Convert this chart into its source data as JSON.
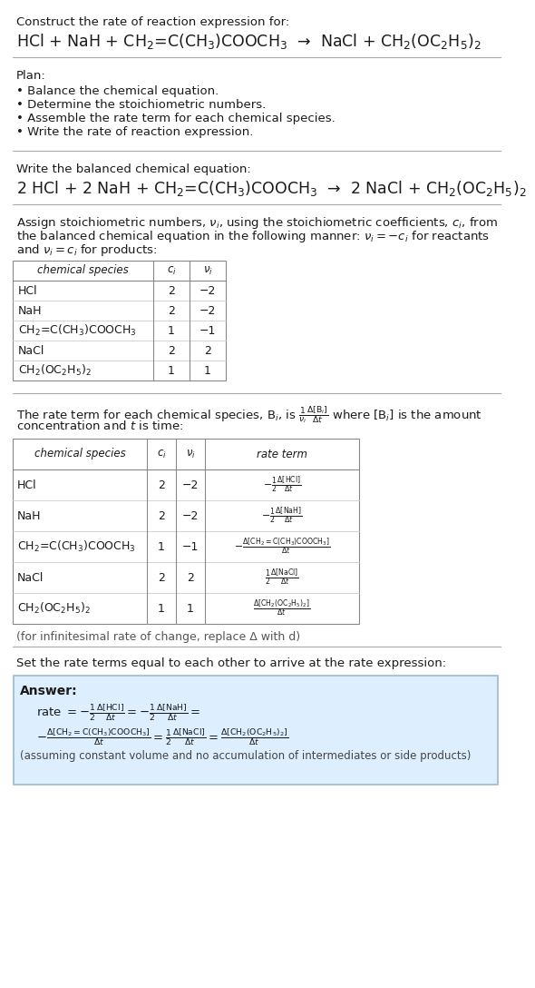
{
  "bg_color": "#ffffff",
  "text_color": "#1a1a1a",
  "answer_bg": "#ddeeff",
  "title_line1": "Construct the rate of reaction expression for:",
  "title_line2": "HCl + NaH + CH$_2$=C(CH$_3$)COOCH$_3$  →  NaCl + CH$_2$(OC$_2$H$_5$)$_2$",
  "plan_header": "Plan:",
  "plan_items": [
    "• Balance the chemical equation.",
    "• Determine the stoichiometric numbers.",
    "• Assemble the rate term for each chemical species.",
    "• Write the rate of reaction expression."
  ],
  "balanced_header": "Write the balanced chemical equation:",
  "balanced_eq": "2 HCl + 2 NaH + CH$_2$=C(CH$_3$)COOCH$_3$  →  2 NaCl + CH$_2$(OC$_2$H$_5$)$_2$",
  "stoich_text_lines": [
    "Assign stoichiometric numbers, $\\nu_i$, using the stoichiometric coefficients, $c_i$, from",
    "the balanced chemical equation in the following manner: $\\nu_i = -c_i$ for reactants",
    "and $\\nu_i = c_i$ for products:"
  ],
  "table1_headers": [
    "chemical species",
    "$c_i$",
    "$\\nu_i$"
  ],
  "table1_rows": [
    [
      "HCl",
      "2",
      "−2"
    ],
    [
      "NaH",
      "2",
      "−2"
    ],
    [
      "CH$_2$=C(CH$_3$)COOCH$_3$",
      "1",
      "−1"
    ],
    [
      "NaCl",
      "2",
      "2"
    ],
    [
      "CH$_2$(OC$_2$H$_5$)$_2$",
      "1",
      "1"
    ]
  ],
  "rate_term_text_lines": [
    "The rate term for each chemical species, B$_i$, is $\\frac{1}{\\nu_i}\\frac{\\Delta[\\mathrm{B}_i]}{\\Delta t}$ where [B$_i$] is the amount",
    "concentration and $t$ is time:"
  ],
  "table2_headers": [
    "chemical species",
    "$c_i$",
    "$\\nu_i$",
    "rate term"
  ],
  "table2_rows": [
    [
      "HCl",
      "2",
      "−2",
      "$-\\frac{1}{2}\\frac{\\Delta[\\mathrm{HCl}]}{\\Delta t}$"
    ],
    [
      "NaH",
      "2",
      "−2",
      "$-\\frac{1}{2}\\frac{\\Delta[\\mathrm{NaH}]}{\\Delta t}$"
    ],
    [
      "CH$_2$=C(CH$_3$)COOCH$_3$",
      "1",
      "−1",
      "$-\\frac{\\Delta[\\mathrm{CH_2{=}C(CH_3)COOCH_3}]}{\\Delta t}$"
    ],
    [
      "NaCl",
      "2",
      "2",
      "$\\frac{1}{2}\\frac{\\Delta[\\mathrm{NaCl}]}{\\Delta t}$"
    ],
    [
      "CH$_2$(OC$_2$H$_5$)$_2$",
      "1",
      "1",
      "$\\frac{\\Delta[\\mathrm{CH_2(OC_2H_5)_2}]}{\\Delta t}$"
    ]
  ],
  "infinitesimal_note": "(for infinitesimal rate of change, replace Δ with d)",
  "set_rate_text": "Set the rate terms equal to each other to arrive at the rate expression:",
  "answer_label": "Answer:",
  "answer_rate_line1": "rate $= -\\frac{1}{2}\\frac{\\Delta[\\mathrm{HCl}]}{\\Delta t} = -\\frac{1}{2}\\frac{\\Delta[\\mathrm{NaH}]}{\\Delta t} =$",
  "answer_rate_line2": "$-\\frac{\\Delta[\\mathrm{CH_2{=}C(CH_3)COOCH_3}]}{\\Delta t} = \\frac{1}{2}\\frac{\\Delta[\\mathrm{NaCl}]}{\\Delta t} = \\frac{\\Delta[\\mathrm{CH_2(OC_2H_5)_2}]}{\\Delta t}$",
  "answer_footnote": "(assuming constant volume and no accumulation of intermediates or side products)",
  "line_color": "#aaaaaa",
  "table_border": "#888888",
  "table_divider": "#cccccc"
}
